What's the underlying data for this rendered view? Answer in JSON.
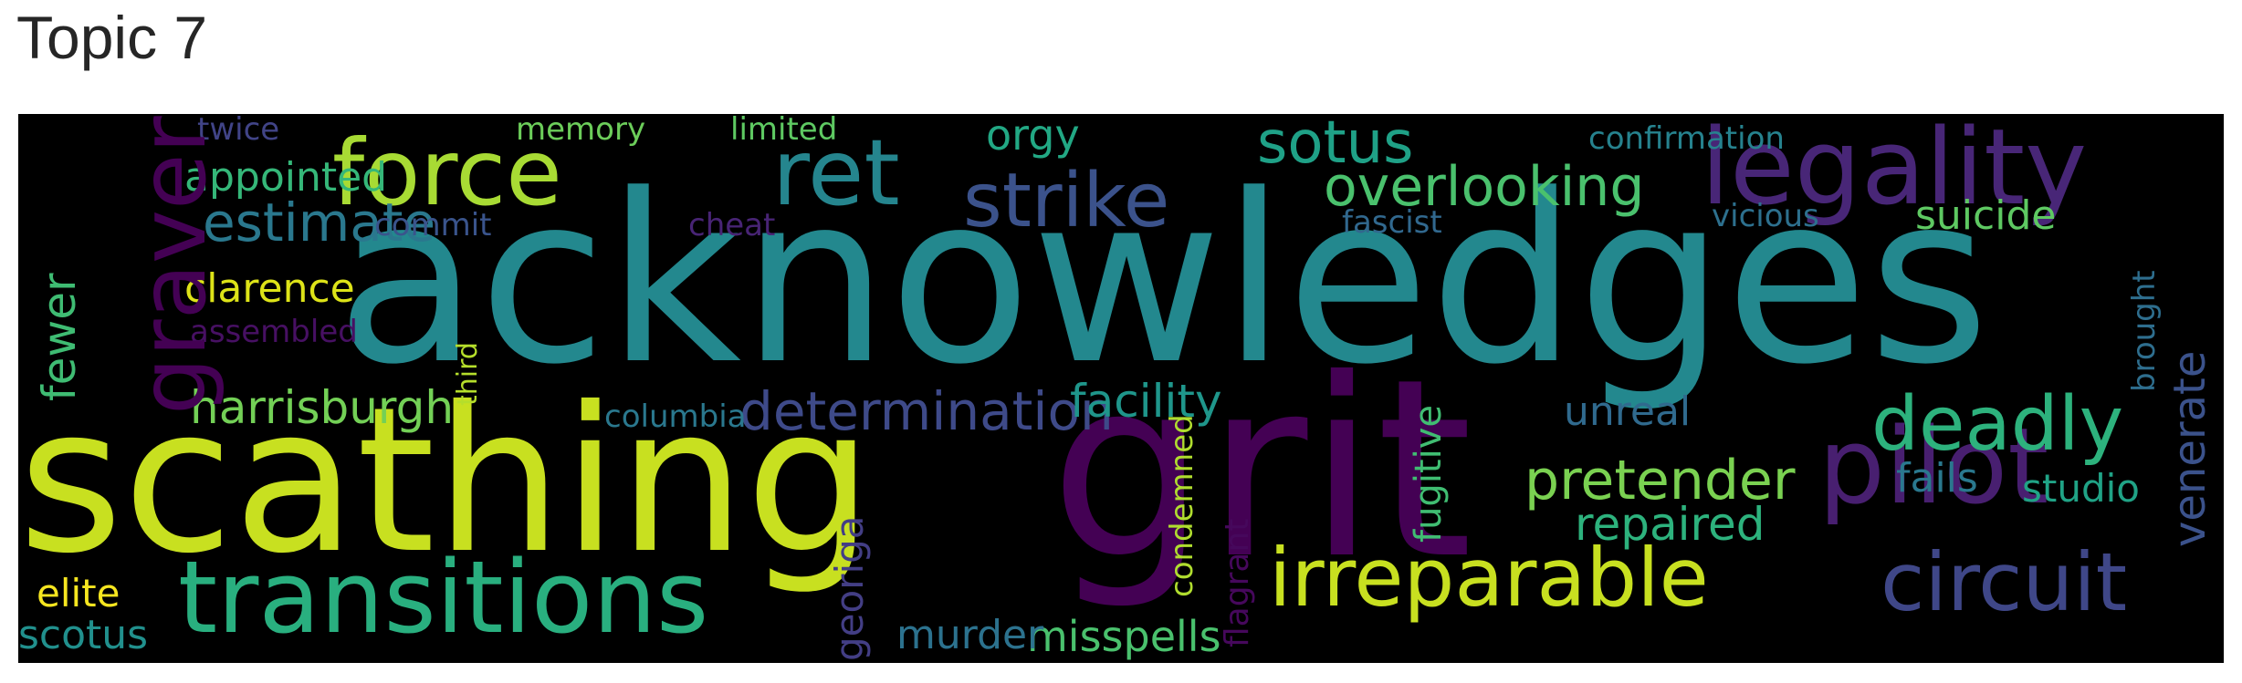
{
  "title": "Topic 7",
  "words": [
    {
      "text": "acknowledges",
      "color": "#23888e"
    },
    {
      "text": "scathing",
      "color": "#c8e020"
    },
    {
      "text": "grit",
      "color": "#440154"
    },
    {
      "text": "transitions",
      "color": "#29af7f"
    },
    {
      "text": "legality",
      "color": "#482677"
    },
    {
      "text": "force",
      "color": "#a8db34"
    },
    {
      "text": "ret",
      "color": "#25858e"
    },
    {
      "text": "pilot",
      "color": "#481f70"
    },
    {
      "text": "circuit",
      "color": "#3f4788"
    },
    {
      "text": "irreparable",
      "color": "#c8e020"
    },
    {
      "text": "deadly",
      "color": "#2db27d"
    },
    {
      "text": "strike",
      "color": "#3b528b"
    },
    {
      "text": "sotus",
      "color": "#1fa187"
    },
    {
      "text": "pretender",
      "color": "#7ad151"
    },
    {
      "text": "overlooking",
      "color": "#4ac16d"
    },
    {
      "text": "determination",
      "color": "#3e4a89"
    },
    {
      "text": "facility",
      "color": "#1f968b"
    },
    {
      "text": "estimate",
      "color": "#2a788e"
    },
    {
      "text": "harrisburgh",
      "color": "#73d056"
    },
    {
      "text": "repaired",
      "color": "#2db27d"
    },
    {
      "text": "orgy",
      "color": "#22a884"
    },
    {
      "text": "misspells",
      "color": "#4ac16d"
    },
    {
      "text": "appointed",
      "color": "#35b779"
    },
    {
      "text": "clarence",
      "color": "#dde318"
    },
    {
      "text": "suicide",
      "color": "#5ec962"
    },
    {
      "text": "scotus",
      "color": "#21908d"
    },
    {
      "text": "murder",
      "color": "#2c728e"
    },
    {
      "text": "unreal",
      "color": "#306a8e"
    },
    {
      "text": "studio",
      "color": "#20a386"
    },
    {
      "text": "fails",
      "color": "#2a788e"
    },
    {
      "text": "elite",
      "color": "#f6e620"
    },
    {
      "text": "commit",
      "color": "#3a548c"
    },
    {
      "text": "cheat",
      "color": "#482475"
    },
    {
      "text": "twice",
      "color": "#414487"
    },
    {
      "text": "memory",
      "color": "#6ccd5a"
    },
    {
      "text": "limited",
      "color": "#5ec962"
    },
    {
      "text": "confirmation",
      "color": "#26828e"
    },
    {
      "text": "fascist",
      "color": "#31688e"
    },
    {
      "text": "vicious",
      "color": "#2d708e"
    },
    {
      "text": "assembled",
      "color": "#471063"
    },
    {
      "text": "columbia",
      "color": "#2a788e"
    },
    {
      "text": "graver",
      "color": "#440154"
    },
    {
      "text": "venerate",
      "color": "#3b528b"
    },
    {
      "text": "fewer",
      "color": "#3fbc73"
    },
    {
      "text": "fugitive",
      "color": "#40bd72"
    },
    {
      "text": "georiga",
      "color": "#433e85"
    },
    {
      "text": "brought",
      "color": "#2e6e8e"
    },
    {
      "text": "third",
      "color": "#b5de2b"
    },
    {
      "text": "condemned",
      "color": "#b0dd2f"
    },
    {
      "text": "flagrant",
      "color": "#46085c"
    }
  ]
}
